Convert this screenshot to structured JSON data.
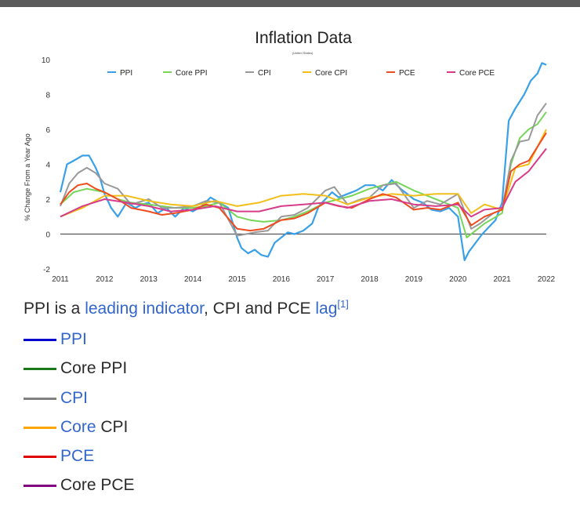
{
  "caption": {
    "prefix": "PPI is a ",
    "link1": "leading indicator",
    "middle": ", CPI and PCE ",
    "link2": "lag",
    "ref": "[1]"
  },
  "legend_list": [
    {
      "parts": [
        {
          "text": "PPI",
          "link": true
        }
      ],
      "color": "#0000cc"
    },
    {
      "parts": [
        {
          "text": "Core PPI",
          "link": false
        }
      ],
      "color": "#1a7a1a"
    },
    {
      "parts": [
        {
          "text": "CPI",
          "link": true
        }
      ],
      "color": "#808080"
    },
    {
      "parts": [
        {
          "text": "Core",
          "link": true
        },
        {
          "text": " CPI",
          "link": false
        }
      ],
      "color": "#ffa500"
    },
    {
      "parts": [
        {
          "text": "PCE",
          "link": true
        }
      ],
      "color": "#e00000"
    },
    {
      "parts": [
        {
          "text": "Core PCE",
          "link": false
        }
      ],
      "color": "#800080"
    }
  ],
  "chart_data": {
    "type": "line",
    "title": "Inflation Data",
    "subtitle": "(United States)",
    "xlabel": "",
    "ylabel": "% Change From a Year Ago",
    "xlim": [
      2011,
      2022
    ],
    "ylim": [
      -2,
      10
    ],
    "xticks": [
      2011,
      2012,
      2013,
      2014,
      2015,
      2016,
      2017,
      2018,
      2019,
      2020,
      2021,
      2022
    ],
    "yticks": [
      -2,
      0,
      2,
      4,
      6,
      8,
      10
    ],
    "grid": false,
    "legend_position": "top",
    "series": [
      {
        "name": "PPI",
        "color": "#3aa0e8",
        "width": 2.2,
        "x": [
          2011.0,
          2011.15,
          2011.3,
          2011.5,
          2011.65,
          2011.8,
          2011.9,
          2012.0,
          2012.15,
          2012.3,
          2012.5,
          2012.7,
          2012.85,
          2013.0,
          2013.2,
          2013.4,
          2013.6,
          2013.8,
          2014.0,
          2014.2,
          2014.4,
          2014.6,
          2014.8,
          2015.0,
          2015.1,
          2015.25,
          2015.4,
          2015.55,
          2015.7,
          2015.85,
          2016.0,
          2016.15,
          2016.3,
          2016.5,
          2016.7,
          2016.85,
          2017.0,
          2017.15,
          2017.3,
          2017.5,
          2017.7,
          2017.9,
          2018.1,
          2018.3,
          2018.5,
          2018.7,
          2018.85,
          2019.0,
          2019.2,
          2019.4,
          2019.6,
          2019.8,
          2020.0,
          2020.15,
          2020.25,
          2020.4,
          2020.55,
          2020.7,
          2020.85,
          2021.0,
          2021.15,
          2021.3,
          2021.5,
          2021.65,
          2021.8,
          2021.9,
          2022.0
        ],
        "values": [
          2.4,
          4.0,
          4.2,
          4.5,
          4.5,
          3.8,
          3.2,
          2.3,
          1.5,
          1.0,
          1.8,
          1.5,
          1.7,
          1.8,
          1.2,
          1.5,
          1.0,
          1.5,
          1.3,
          1.6,
          2.1,
          1.8,
          1.5,
          -0.2,
          -0.8,
          -1.1,
          -0.9,
          -1.2,
          -1.3,
          -0.5,
          -0.2,
          0.1,
          0.0,
          0.2,
          0.6,
          1.6,
          2.0,
          2.4,
          2.1,
          2.3,
          2.5,
          2.8,
          2.8,
          2.5,
          3.1,
          2.6,
          2.3,
          2.0,
          1.8,
          1.4,
          1.3,
          1.5,
          1.0,
          -1.5,
          -1.0,
          -0.5,
          0.0,
          0.4,
          0.8,
          1.8,
          6.5,
          7.2,
          8.0,
          8.8,
          9.2,
          9.8,
          9.7
        ]
      },
      {
        "name": "Core PPI",
        "color": "#77d65a",
        "width": 2,
        "x": [
          2011.0,
          2011.3,
          2011.6,
          2012.0,
          2012.3,
          2012.6,
          2013.0,
          2013.3,
          2013.6,
          2014.0,
          2014.3,
          2014.6,
          2015.0,
          2015.3,
          2015.6,
          2016.0,
          2016.3,
          2016.6,
          2017.0,
          2017.3,
          2017.6,
          2018.0,
          2018.3,
          2018.6,
          2019.0,
          2019.3,
          2019.6,
          2020.0,
          2020.2,
          2020.4,
          2020.6,
          2020.8,
          2021.0,
          2021.2,
          2021.4,
          2021.6,
          2021.8,
          2022.0
        ],
        "values": [
          1.7,
          2.4,
          2.6,
          2.4,
          2.0,
          1.8,
          1.7,
          1.6,
          1.5,
          1.5,
          1.6,
          1.8,
          1.0,
          0.8,
          0.7,
          0.8,
          1.0,
          1.3,
          1.8,
          2.0,
          2.2,
          2.6,
          2.8,
          3.0,
          2.5,
          2.2,
          1.9,
          1.5,
          -0.2,
          0.2,
          0.6,
          0.9,
          1.2,
          4.0,
          5.5,
          6.0,
          6.3,
          7.0
        ]
      },
      {
        "name": "CPI",
        "color": "#999999",
        "width": 2,
        "x": [
          2011.0,
          2011.2,
          2011.4,
          2011.6,
          2011.8,
          2012.0,
          2012.3,
          2012.6,
          2013.0,
          2013.3,
          2013.6,
          2014.0,
          2014.3,
          2014.6,
          2015.0,
          2015.2,
          2015.4,
          2015.7,
          2016.0,
          2016.3,
          2016.6,
          2017.0,
          2017.2,
          2017.5,
          2017.8,
          2018.0,
          2018.3,
          2018.6,
          2019.0,
          2019.3,
          2019.6,
          2020.0,
          2020.3,
          2020.5,
          2020.8,
          2021.0,
          2021.2,
          2021.4,
          2021.6,
          2021.8,
          2022.0
        ],
        "values": [
          1.6,
          2.9,
          3.5,
          3.8,
          3.5,
          2.9,
          2.6,
          1.7,
          2.0,
          1.5,
          1.5,
          1.6,
          1.9,
          1.8,
          -0.1,
          0.0,
          0.1,
          0.2,
          1.0,
          1.1,
          1.5,
          2.5,
          2.7,
          1.7,
          2.0,
          2.1,
          2.8,
          2.9,
          1.5,
          1.9,
          1.7,
          2.3,
          0.3,
          0.6,
          1.2,
          1.4,
          4.2,
          5.3,
          5.4,
          6.8,
          7.5
        ]
      },
      {
        "name": "Core CPI",
        "color": "#f2bf1a",
        "width": 2,
        "x": [
          2011.0,
          2011.5,
          2012.0,
          2012.5,
          2013.0,
          2013.5,
          2014.0,
          2014.5,
          2015.0,
          2015.5,
          2016.0,
          2016.5,
          2017.0,
          2017.5,
          2018.0,
          2018.5,
          2019.0,
          2019.5,
          2020.0,
          2020.3,
          2020.6,
          2021.0,
          2021.3,
          2021.6,
          2022.0
        ],
        "values": [
          1.0,
          1.5,
          2.2,
          2.2,
          1.9,
          1.7,
          1.6,
          1.9,
          1.6,
          1.8,
          2.2,
          2.3,
          2.2,
          1.7,
          2.1,
          2.3,
          2.2,
          2.3,
          2.3,
          1.2,
          1.7,
          1.4,
          3.8,
          4.0,
          6.0
        ]
      },
      {
        "name": "PCE",
        "color": "#ee4b1e",
        "width": 2,
        "x": [
          2011.0,
          2011.2,
          2011.4,
          2011.6,
          2011.8,
          2012.0,
          2012.3,
          2012.6,
          2013.0,
          2013.3,
          2013.6,
          2014.0,
          2014.3,
          2014.6,
          2015.0,
          2015.3,
          2015.6,
          2016.0,
          2016.3,
          2016.6,
          2017.0,
          2017.3,
          2017.6,
          2018.0,
          2018.3,
          2018.6,
          2019.0,
          2019.3,
          2019.6,
          2020.0,
          2020.3,
          2020.6,
          2021.0,
          2021.2,
          2021.4,
          2021.6,
          2021.8,
          2022.0
        ],
        "values": [
          1.7,
          2.4,
          2.8,
          2.9,
          2.6,
          2.4,
          2.0,
          1.5,
          1.3,
          1.1,
          1.2,
          1.4,
          1.7,
          1.5,
          0.3,
          0.2,
          0.3,
          0.8,
          0.9,
          1.2,
          1.8,
          1.6,
          1.5,
          2.0,
          2.3,
          2.1,
          1.4,
          1.5,
          1.4,
          1.8,
          0.5,
          1.0,
          1.4,
          3.6,
          4.0,
          4.2,
          5.0,
          5.8
        ]
      },
      {
        "name": "Core PCE",
        "color": "#d63c8a",
        "width": 2,
        "x": [
          2011.0,
          2011.5,
          2012.0,
          2012.5,
          2013.0,
          2013.5,
          2014.0,
          2014.5,
          2015.0,
          2015.5,
          2016.0,
          2016.5,
          2017.0,
          2017.5,
          2018.0,
          2018.5,
          2019.0,
          2019.5,
          2020.0,
          2020.3,
          2020.6,
          2021.0,
          2021.3,
          2021.6,
          2022.0
        ],
        "values": [
          1.0,
          1.6,
          2.0,
          1.8,
          1.6,
          1.3,
          1.4,
          1.6,
          1.3,
          1.3,
          1.6,
          1.7,
          1.8,
          1.5,
          1.9,
          2.0,
          1.7,
          1.6,
          1.7,
          1.0,
          1.4,
          1.5,
          3.0,
          3.6,
          4.9
        ]
      }
    ]
  }
}
